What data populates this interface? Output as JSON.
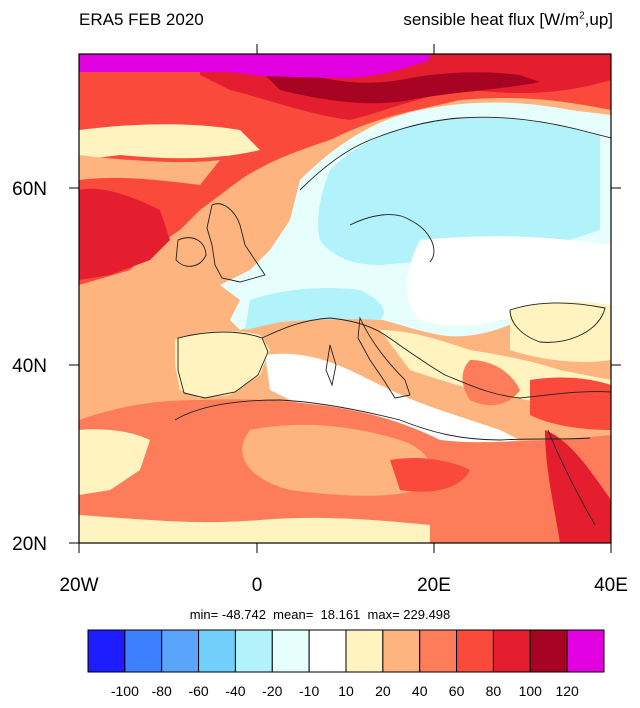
{
  "header": {
    "left_title": "ERA5 FEB 2020",
    "right_title_prefix": "sensible heat flux [W/m",
    "right_title_sup": "2",
    "right_title_suffix": ",up]"
  },
  "map": {
    "lon_range": [
      -20,
      40
    ],
    "lat_range": [
      20,
      75
    ],
    "lon_labels": [
      "20W",
      "0",
      "20E",
      "40E"
    ],
    "lat_labels": [
      "20N",
      "40N",
      "60N"
    ],
    "land_color": "#f5f5f5"
  },
  "stats": {
    "line": "min= -48.742  mean=  18.161  max= 229.498"
  },
  "colorbar": {
    "colors": [
      "#1c1cff",
      "#3d80ff",
      "#5aa5fb",
      "#71cffc",
      "#b2f2fb",
      "#e6fffc",
      "#ffffff",
      "#fff3c0",
      "#fdb47e",
      "#fd7d5b",
      "#f94a3c",
      "#e41d2f",
      "#a70424",
      "#e000e0"
    ],
    "labels": [
      "-100",
      "-80",
      "-60",
      "-40",
      "-20",
      "-10",
      "10",
      "20",
      "40",
      "60",
      "80",
      "100",
      "120"
    ]
  }
}
